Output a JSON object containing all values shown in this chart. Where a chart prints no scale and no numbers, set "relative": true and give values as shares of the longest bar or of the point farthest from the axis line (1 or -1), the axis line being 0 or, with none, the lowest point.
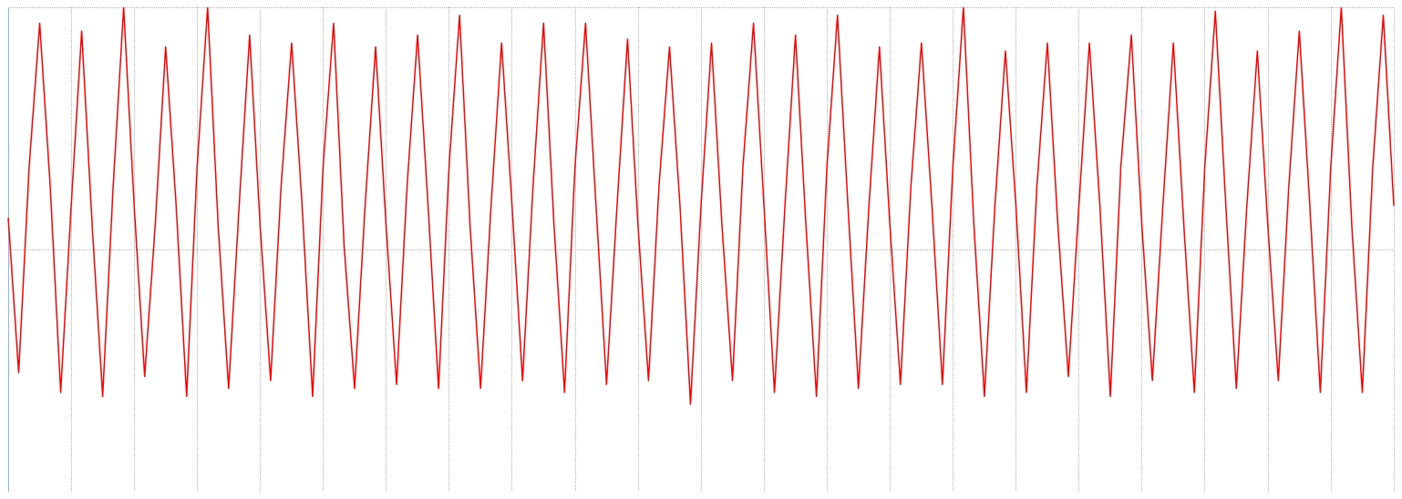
{
  "chart_data": {
    "type": "line",
    "relative": true,
    "grid": true,
    "marker": "none",
    "line_style": "solid",
    "categories": [
      null,
      null,
      null,
      null,
      null,
      null,
      null,
      null,
      null,
      null,
      null,
      null,
      null,
      null,
      null,
      null,
      null,
      null,
      null,
      null,
      null,
      null,
      null,
      null,
      null,
      null,
      null,
      null,
      null,
      null,
      null,
      null,
      null,
      null,
      null,
      null,
      null,
      null,
      null,
      null,
      null,
      null,
      null,
      null,
      null,
      null,
      null,
      null,
      null,
      null,
      null,
      null,
      null,
      null,
      null,
      null,
      null,
      null,
      null,
      null,
      null,
      null,
      null,
      null,
      null,
      null,
      null,
      null,
      null,
      null,
      null,
      null,
      null,
      null,
      null,
      null,
      null,
      null,
      null,
      null,
      null,
      null,
      null,
      null,
      null,
      null,
      null,
      null,
      null,
      null,
      null,
      null,
      null,
      null,
      null,
      null,
      null,
      null,
      null,
      null,
      null,
      null,
      null,
      null,
      null,
      null,
      null,
      null,
      null,
      null,
      null,
      null,
      null,
      null,
      null,
      null,
      null,
      null,
      null,
      null,
      null,
      null,
      null,
      null,
      null,
      null,
      null,
      null,
      null,
      null,
      null,
      null,
      null
    ],
    "series": [
      {
        "color": "#ff0000",
        "values": [
          0.47,
          0.08,
          0.6,
          0.96,
          0.55,
          0.03,
          0.5,
          0.94,
          0.45,
          0.02,
          0.55,
          1,
          0.5,
          0.07,
          0.45,
          0.9,
          0.5,
          0.02,
          0.6,
          1,
          0.45,
          0.04,
          0.5,
          0.93,
          0.45,
          0.06,
          0.55,
          0.91,
          0.5,
          0.02,
          0.6,
          0.96,
          0.4,
          0.04,
          0.5,
          0.9,
          0.45,
          0.05,
          0.55,
          0.93,
          0.5,
          0.04,
          0.6,
          0.98,
          0.45,
          0.04,
          0.5,
          0.91,
          0.5,
          0.06,
          0.55,
          0.96,
          0.45,
          0.03,
          0.6,
          0.96,
          0.5,
          0.05,
          0.5,
          0.92,
          0.45,
          0.06,
          0.55,
          0.9,
          0.5,
          0,
          0.5,
          0.91,
          0.45,
          0.06,
          0.6,
          0.96,
          0.5,
          0.03,
          0.5,
          0.93,
          0.45,
          0.02,
          0.6,
          0.98,
          0.5,
          0.04,
          0.5,
          0.9,
          0.45,
          0.05,
          0.55,
          0.91,
          0.5,
          0.05,
          0.6,
          1,
          0.45,
          0.02,
          0.5,
          0.89,
          0.5,
          0.03,
          0.55,
          0.91,
          0.45,
          0.07,
          0.5,
          0.91,
          0.5,
          0.02,
          0.6,
          0.93,
          0.45,
          0.06,
          0.5,
          0.91,
          0.45,
          0.03,
          0.6,
          0.99,
          0.5,
          0.04,
          0.5,
          0.89,
          0.45,
          0.06,
          0.55,
          0.94,
          0.5,
          0.03,
          0.6,
          1,
          0.45,
          0.03,
          0.6,
          0.98,
          0.5
        ]
      }
    ]
  }
}
